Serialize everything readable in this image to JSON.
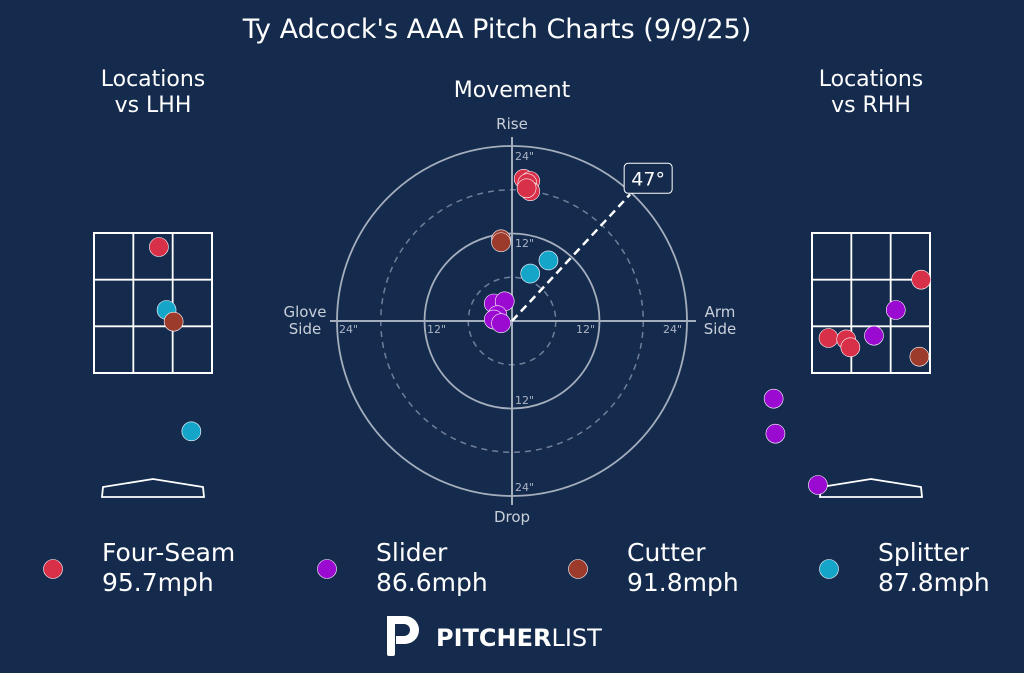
{
  "title": "Ty Adcock's AAA Pitch Charts (9/9/25)",
  "colors": {
    "background": "#152b4d",
    "four_seam": "#d9304a",
    "slider": "#9a0ad1",
    "cutter": "#9c3b2c",
    "splitter": "#14a5c9",
    "grid_text": "#aab3c4"
  },
  "chart_data": [
    {
      "type": "scatter",
      "title": "Locations\nvs LHH",
      "title_lines": [
        "Locations",
        "vs LHH"
      ],
      "zone": {
        "x_range": [
          -1,
          1
        ],
        "y_range": [
          0,
          3
        ],
        "note": "zone grid coordinates: x horizontal, y vertical (zone from 0 to 3 in grid units)"
      },
      "points": [
        {
          "pitch": "Four-Seam",
          "x": 0.1,
          "y": 2.7
        },
        {
          "pitch": "Splitter",
          "x": 0.23,
          "y": 1.35
        },
        {
          "pitch": "Cutter",
          "x": 0.35,
          "y": 1.1
        },
        {
          "pitch": "Splitter",
          "x": 0.65,
          "y": -1.25
        }
      ]
    },
    {
      "type": "scatter",
      "title": "Movement",
      "axis_labels": {
        "top": "Rise",
        "bottom": "Drop",
        "left": "Glove\nSide",
        "right": "Arm\nSide"
      },
      "axis_labels_lines": {
        "left": [
          "Glove",
          "Side"
        ],
        "right": [
          "Arm",
          "Side"
        ]
      },
      "ring_labels": [
        "12\"",
        "24\""
      ],
      "rings": [
        6,
        12,
        18,
        24
      ],
      "xlim": [
        -25,
        25
      ],
      "ylim": [
        -25,
        25
      ],
      "arm_angle_label": "47°",
      "arm_angle_deg": 47,
      "points": [
        {
          "pitch": "Four-Seam",
          "x": 1.6,
          "y": 19.5
        },
        {
          "pitch": "Four-Seam",
          "x": 2.5,
          "y": 19.2
        },
        {
          "pitch": "Four-Seam",
          "x": 2.1,
          "y": 18.9
        },
        {
          "pitch": "Four-Seam",
          "x": 2.5,
          "y": 17.8
        },
        {
          "pitch": "Four-Seam",
          "x": 2.0,
          "y": 18.2
        },
        {
          "pitch": "Cutter",
          "x": -1.5,
          "y": 11.2
        },
        {
          "pitch": "Cutter",
          "x": -1.5,
          "y": 10.8
        },
        {
          "pitch": "Splitter",
          "x": 2.5,
          "y": 6.5
        },
        {
          "pitch": "Splitter",
          "x": 5.0,
          "y": 8.3
        },
        {
          "pitch": "Slider",
          "x": -2.5,
          "y": 2.4
        },
        {
          "pitch": "Slider",
          "x": -1.0,
          "y": 2.7
        },
        {
          "pitch": "Slider",
          "x": -2.0,
          "y": 0.8
        },
        {
          "pitch": "Slider",
          "x": -2.5,
          "y": 0.2
        },
        {
          "pitch": "Slider",
          "x": -1.5,
          "y": -0.3
        }
      ]
    },
    {
      "type": "scatter",
      "title": "Locations\nvs RHH",
      "title_lines": [
        "Locations",
        "vs RHH"
      ],
      "zone": {
        "x_range": [
          -1,
          1
        ],
        "y_range": [
          0,
          3
        ]
      },
      "points": [
        {
          "pitch": "Four-Seam",
          "x": 0.85,
          "y": 2.0
        },
        {
          "pitch": "Slider",
          "x": 0.42,
          "y": 1.35
        },
        {
          "pitch": "Slider",
          "x": 0.05,
          "y": 0.8
        },
        {
          "pitch": "Four-Seam",
          "x": -0.72,
          "y": 0.75
        },
        {
          "pitch": "Four-Seam",
          "x": -0.42,
          "y": 0.72
        },
        {
          "pitch": "Four-Seam",
          "x": -0.35,
          "y": 0.55
        },
        {
          "pitch": "Cutter",
          "x": 0.82,
          "y": 0.35
        },
        {
          "pitch": "Slider",
          "x": -1.65,
          "y": -0.55
        },
        {
          "pitch": "Slider",
          "x": -1.62,
          "y": -1.3
        },
        {
          "pitch": "Slider",
          "x": -0.9,
          "y": -2.4
        }
      ]
    }
  ],
  "legend": [
    {
      "pitch": "Four-Seam",
      "name": "Four-Seam",
      "speed": "95.7mph",
      "color": "#d9304a"
    },
    {
      "pitch": "Slider",
      "name": "Slider",
      "speed": "86.6mph",
      "color": "#9a0ad1"
    },
    {
      "pitch": "Cutter",
      "name": "Cutter",
      "speed": "91.8mph",
      "color": "#9c3b2c"
    },
    {
      "pitch": "Splitter",
      "name": "Splitter",
      "speed": "87.8mph",
      "color": "#14a5c9"
    }
  ],
  "logo": {
    "brand_bold": "PITCHER",
    "brand_light": "LIST"
  }
}
